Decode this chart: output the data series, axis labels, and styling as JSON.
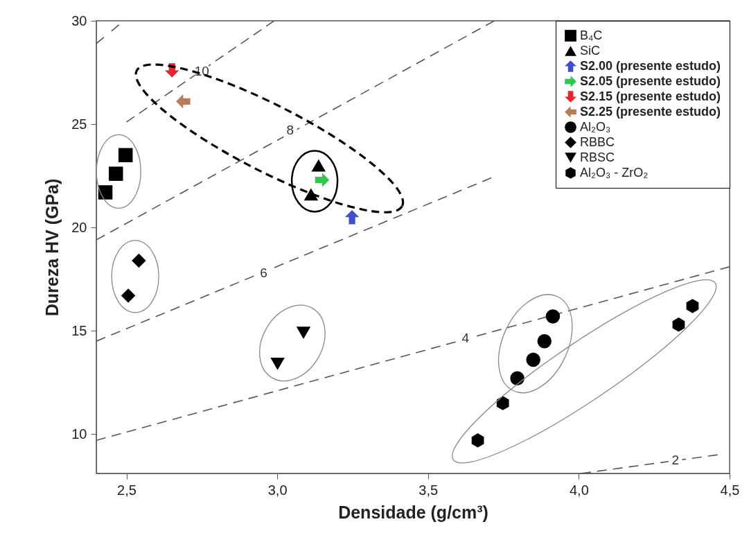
{
  "chart_data": {
    "type": "scatter",
    "xlabel": "Densidade (g/cm³)",
    "ylabel": "Dureza HV (GPa)",
    "xlim": [
      2.4,
      4.5
    ],
    "xticks": [
      {
        "value": 2.5,
        "label": "2,5"
      },
      {
        "value": 3.0,
        "label": "3,0"
      },
      {
        "value": 3.5,
        "label": "3,5"
      },
      {
        "value": 4.0,
        "label": "4,0"
      },
      {
        "value": 4.5,
        "label": "4,5"
      }
    ],
    "ylim": [
      8.1,
      30
    ],
    "yticks": [
      10,
      15,
      20,
      25,
      30
    ],
    "legend": "top right",
    "series": [
      {
        "name": "B₄C",
        "color": "#000000",
        "marker": "square",
        "x": [
          2.43,
          2.465,
          2.497
        ],
        "values": [
          21.7,
          22.6,
          23.5
        ]
      },
      {
        "name": "SiC",
        "color": "#000000",
        "marker": "triangle",
        "x": [
          3.137,
          3.112
        ],
        "values": [
          23.0,
          21.6
        ]
      },
      {
        "name": "S2.00 (presente estudo)",
        "color": "#3f4fcc",
        "x": [
          3.248
        ],
        "values": [
          20.5
        ]
      },
      {
        "name": "S2.05 (presente estudo)",
        "color": "#2ec84a",
        "x": [
          3.149
        ],
        "values": [
          22.3
        ]
      },
      {
        "name": "S2.15 (presente estudo)",
        "color": "#e8242c",
        "x": [
          2.651
        ],
        "values": [
          27.6
        ]
      },
      {
        "name": "S2.25 (presente estudo)",
        "color": "#b87c5a",
        "x": [
          2.688
        ],
        "values": [
          26.1
        ]
      },
      {
        "name": "Al₂O₃",
        "color": "#000000",
        "marker": "circle",
        "x": [
          3.914,
          3.886,
          3.849,
          3.796
        ],
        "values": [
          15.7,
          14.5,
          13.6,
          12.7
        ]
      },
      {
        "name": "RBBC",
        "color": "#000000",
        "marker": "diamond",
        "x": [
          2.541,
          2.506
        ],
        "values": [
          18.4,
          16.7
        ]
      },
      {
        "name": "RBSC",
        "color": "#000000",
        "marker": "triangle-down",
        "x": [
          3.087,
          3.001
        ],
        "values": [
          14.9,
          13.4
        ]
      },
      {
        "name": "Al₂O₃ - ZrO₂",
        "color": "#000000",
        "x": [
          3.748,
          3.665,
          4.331,
          4.377
        ],
        "values": [
          11.5,
          9.7,
          15.3,
          16.2
        ]
      },
      {
        "type": "line",
        "color": "#555555",
        "line_style": "dashed",
        "x": [
          4.008,
          4.46
        ],
        "values": [
          8.1,
          9.0
        ]
      },
      {
        "type": "line",
        "color": "#555555",
        "line_style": "dashed",
        "x": [
          2.4,
          4.5
        ],
        "values": [
          9.7,
          18.1
        ]
      },
      {
        "type": "line",
        "color": "#555555",
        "line_style": "dashed",
        "x": [
          2.4,
          3.71
        ],
        "values": [
          14.5,
          22.4
        ]
      },
      {
        "type": "line",
        "color": "#555555",
        "line_style": "dashed",
        "x": [
          2.4,
          3.72
        ],
        "values": [
          19.4,
          30.0
        ]
      },
      {
        "type": "line",
        "color": "#555555",
        "line_style": "dashed",
        "x": [
          2.5,
          2.99
        ],
        "values": [
          25.1,
          30.0
        ]
      },
      {
        "type": "line",
        "color": "#555555",
        "line_style": "dashed",
        "x": [
          2.4,
          2.475
        ],
        "values": [
          28.9,
          29.8
        ]
      }
    ],
    "annotations": [
      {
        "text": "2",
        "x": 4.32,
        "y": 8.75
      },
      {
        "text": "4",
        "x": 3.624,
        "y": 14.65
      },
      {
        "text": "6",
        "x": 2.955,
        "y": 17.8
      },
      {
        "text": "8",
        "x": 3.043,
        "y": 24.7
      },
      {
        "text": "10",
        "x": 2.75,
        "y": 27.55
      }
    ]
  }
}
